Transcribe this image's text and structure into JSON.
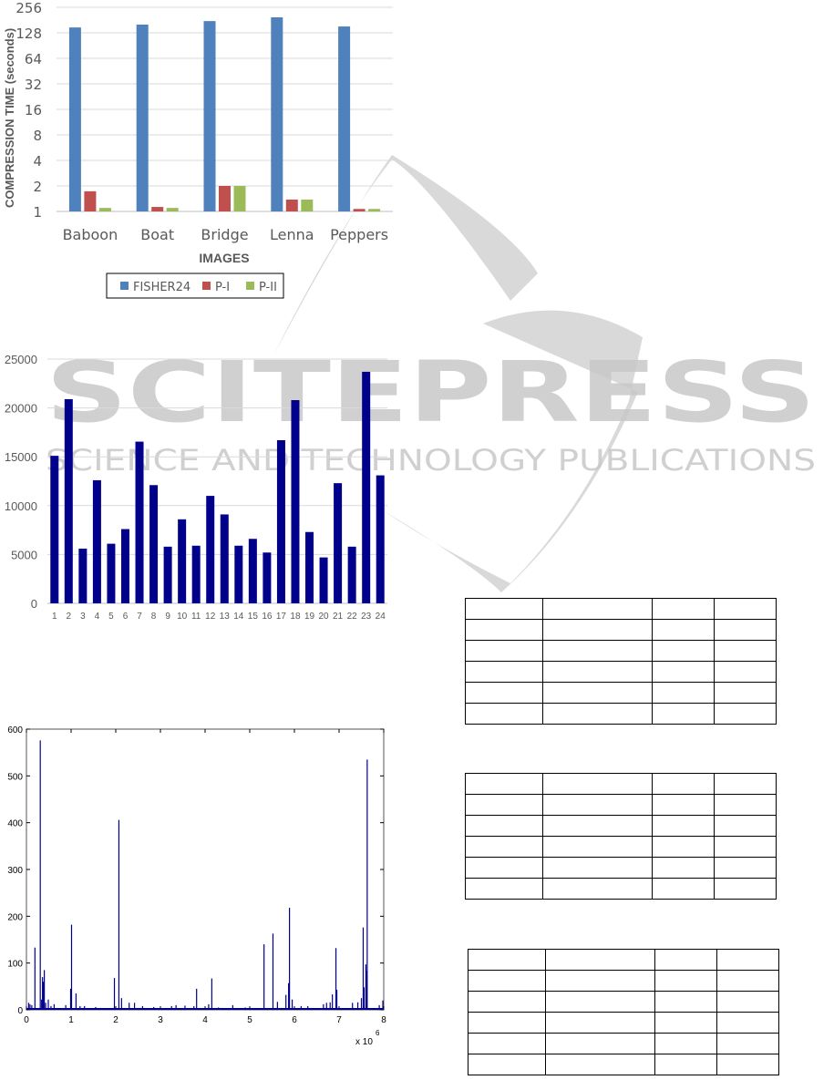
{
  "watermark": {
    "title": "SCITEPRESS",
    "subtitle": "SCIENCE AND TECHNOLOGY PUBLICATIONS",
    "color": "#c8c8c8"
  },
  "chart_data": [
    {
      "type": "bar",
      "title": "",
      "xlabel": "IMAGES",
      "ylabel": "COMPRESSION TIME (seconds)",
      "yscale": "log2",
      "ylim": [
        1,
        256
      ],
      "yticks": [
        "1",
        "2",
        "4",
        "8",
        "16",
        "32",
        "64",
        "128",
        "256"
      ],
      "grid": true,
      "legend_placement": "bottom",
      "categories": [
        "Baboon",
        "Boat",
        "Bridge",
        "Lenna",
        "Peppers"
      ],
      "series": [
        {
          "name": "FISHER24",
          "color": "#4f81bd",
          "values": [
            148,
            160,
            176,
            195,
            152
          ]
        },
        {
          "name": "P-I",
          "color": "#c0504d",
          "values": [
            1.73,
            1.13,
            2.0,
            1.38,
            1.07
          ]
        },
        {
          "name": "P-II",
          "color": "#9bbb59",
          "values": [
            1.1,
            1.1,
            2.0,
            1.38,
            1.07
          ]
        }
      ]
    },
    {
      "type": "bar",
      "title": "",
      "xlabel": "",
      "ylabel": "",
      "ylim": [
        0,
        25000
      ],
      "yticks": [
        "0",
        "5000",
        "10000",
        "15000",
        "20000",
        "25000"
      ],
      "grid": true,
      "color": "#00008b",
      "categories": [
        "1",
        "2",
        "3",
        "4",
        "5",
        "6",
        "7",
        "8",
        "9",
        "10",
        "11",
        "12",
        "13",
        "14",
        "15",
        "16",
        "17",
        "18",
        "19",
        "20",
        "21",
        "22",
        "23",
        "24"
      ],
      "values": [
        15100,
        20900,
        5600,
        12600,
        6100,
        7600,
        16550,
        12100,
        5800,
        8600,
        5900,
        11000,
        9100,
        5900,
        6600,
        5200,
        16700,
        20800,
        7300,
        4700,
        12300,
        5800,
        23700,
        13100
      ]
    },
    {
      "type": "bar",
      "title": "",
      "xlabel": "",
      "ylabel": "",
      "xlim": [
        0,
        8
      ],
      "ylim": [
        0,
        600
      ],
      "xticks": [
        "0",
        "1",
        "2",
        "3",
        "4",
        "5",
        "6",
        "7",
        "8"
      ],
      "yticks": [
        "0",
        "100",
        "200",
        "300",
        "400",
        "500",
        "600"
      ],
      "x_multiplier": "x 10",
      "x_exponent": "6",
      "grid": false,
      "color": "#00008b",
      "x": [
        0.05,
        0.08,
        0.12,
        0.19,
        0.31,
        0.34,
        0.36,
        0.38,
        0.4,
        0.43,
        0.49,
        0.55,
        0.62,
        0.88,
        0.99,
        1.01,
        1.11,
        1.2,
        1.3,
        1.55,
        1.97,
        2.07,
        2.13,
        2.3,
        2.42,
        2.6,
        2.85,
        3.25,
        3.35,
        3.55,
        3.75,
        3.81,
        4.08,
        4.15,
        4.3,
        4.62,
        4.9,
        5.32,
        5.52,
        5.62,
        5.81,
        5.87,
        5.89,
        5.95,
        6.15,
        6.3,
        6.65,
        6.72,
        6.8,
        6.85,
        6.93,
        6.95,
        7.3,
        7.42,
        7.5,
        7.54,
        7.56,
        7.6,
        7.62,
        7.63,
        7.9,
        7.98
      ],
      "y": [
        15,
        12,
        10,
        133,
        576,
        22,
        70,
        60,
        85,
        15,
        22,
        8,
        12,
        10,
        45,
        182,
        35,
        8,
        8,
        6,
        68,
        406,
        25,
        15,
        15,
        8,
        6,
        8,
        10,
        9,
        8,
        45,
        12,
        67,
        5,
        10,
        5,
        140,
        163,
        17,
        32,
        57,
        218,
        22,
        8,
        8,
        12,
        15,
        16,
        33,
        132,
        43,
        15,
        16,
        25,
        176,
        48,
        97,
        83,
        535,
        10,
        20
      ]
    }
  ],
  "tables": [
    {
      "rows": [
        [
          "",
          "",
          "",
          ""
        ],
        [
          "",
          "",
          "",
          ""
        ],
        [
          "",
          "",
          "",
          ""
        ],
        [
          "",
          "",
          "",
          ""
        ],
        [
          "",
          "",
          "",
          ""
        ],
        [
          "",
          "",
          "",
          ""
        ]
      ]
    },
    {
      "rows": [
        [
          "",
          "",
          "",
          ""
        ],
        [
          "",
          "",
          "",
          ""
        ],
        [
          "",
          "",
          "",
          ""
        ],
        [
          "",
          "",
          "",
          ""
        ],
        [
          "",
          "",
          "",
          ""
        ],
        [
          "",
          "",
          "",
          ""
        ]
      ]
    },
    {
      "rows": [
        [
          "",
          "",
          "",
          ""
        ],
        [
          "",
          "",
          "",
          ""
        ],
        [
          "",
          "",
          "",
          ""
        ],
        [
          "",
          "",
          "",
          ""
        ],
        [
          "",
          "",
          "",
          ""
        ],
        [
          "",
          "",
          "",
          ""
        ]
      ]
    }
  ]
}
